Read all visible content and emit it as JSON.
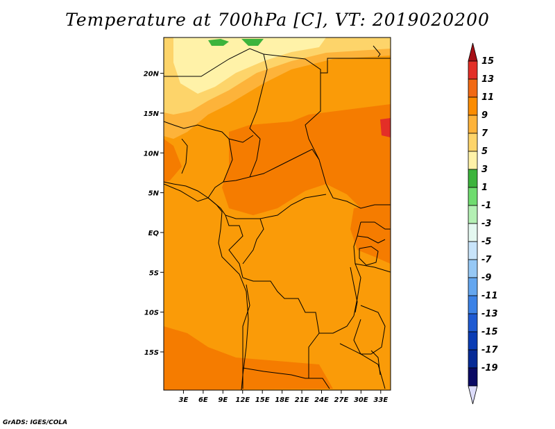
{
  "title": "Temperature at 700hPa [C], VT: 2019020200",
  "credit": "GrADS: IGES/COLA",
  "map": {
    "lon_ticks": [
      "3E",
      "6E",
      "9E",
      "12E",
      "15E",
      "18E",
      "21E",
      "24E",
      "27E",
      "30E",
      "33E"
    ],
    "lat_ticks": [
      "20N",
      "15N",
      "10N",
      "5N",
      "EQ",
      "5S",
      "10S",
      "15S"
    ],
    "lon_range": [
      0,
      34.5
    ],
    "lat_range": [
      -19.8,
      24.5
    ],
    "lon_tick_values": [
      3,
      6,
      9,
      12,
      15,
      18,
      21,
      24,
      27,
      30,
      33
    ],
    "lat_tick_values": [
      20,
      15,
      10,
      5,
      0,
      -5,
      -10,
      -15
    ]
  },
  "colorbar": {
    "labels": [
      "15",
      "13",
      "11",
      "9",
      "7",
      "5",
      "3",
      "1",
      "-1",
      "-3",
      "-5",
      "-7",
      "-9",
      "-11",
      "-13",
      "-15",
      "-17",
      "-19"
    ],
    "colors": [
      "#a50f15",
      "#e32f27",
      "#f16913",
      "#fb8c00",
      "#fdb33a",
      "#fdd46a",
      "#fff2a8",
      "#3cb43c",
      "#6fdc6f",
      "#b4f0b4",
      "#e4f8f0",
      "#c8e4fa",
      "#96c8f5",
      "#64a6ef",
      "#3c82e6",
      "#1e5ad2",
      "#0a3cb4",
      "#062a96",
      "#0a0a64",
      "#dcdcfa"
    ]
  },
  "colors": {
    "orange_dark": "#f57c00",
    "orange": "#fa9b08",
    "orange_light": "#fdb33a",
    "yellow": "#fdd46a",
    "pale_yellow": "#fff2a8",
    "green": "#3cb43c",
    "border": "#000000"
  }
}
